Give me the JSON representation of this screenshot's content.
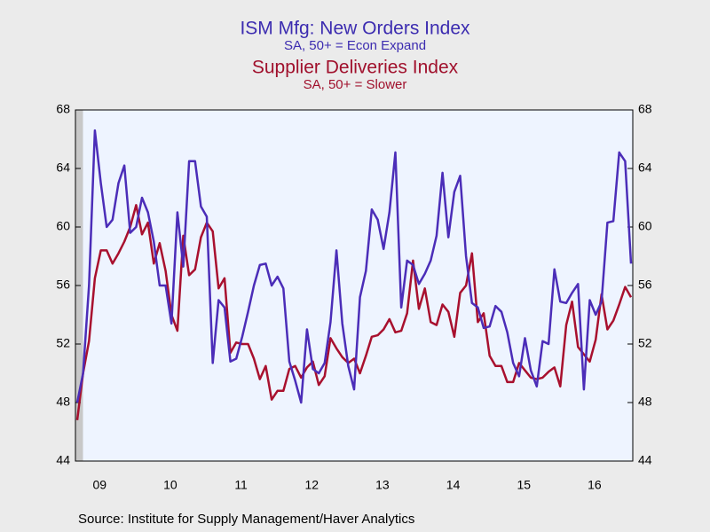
{
  "chart_data": {
    "type": "line",
    "titles": [
      "ISM Mfg: New Orders Index",
      "Supplier Deliveries Index"
    ],
    "subtitles": [
      "SA, 50+ = Econ Expand",
      "SA, 50+ = Slower"
    ],
    "source": "Source:  Institute for Supply Management/Haver Analytics",
    "categories": [
      null,
      null,
      "09",
      null,
      null,
      null,
      null,
      null,
      null,
      null,
      null,
      null,
      null,
      null,
      "10",
      null,
      null,
      null,
      null,
      null,
      null,
      null,
      null,
      null,
      null,
      null,
      "11",
      null,
      null,
      null,
      null,
      null,
      null,
      null,
      null,
      null,
      null,
      null,
      "12",
      null,
      null,
      null,
      null,
      null,
      null,
      null,
      null,
      null,
      null,
      null,
      "13",
      null,
      null,
      null,
      null,
      null,
      null,
      null,
      null,
      null,
      null,
      null,
      "14",
      null,
      null,
      null,
      null,
      null,
      null,
      null,
      null,
      null,
      null,
      null,
      "15",
      null,
      null,
      null,
      null,
      null,
      null,
      null,
      null,
      null,
      null,
      null,
      "16",
      null,
      null,
      null,
      null,
      null,
      null,
      null,
      null
    ],
    "series": [
      {
        "name": "ISM Mfg: New Orders Index",
        "color": "#4b2db8",
        "values": [
          48,
          50,
          56,
          66.6,
          63,
          60,
          60.5,
          63,
          64.2,
          59.6,
          60,
          62,
          61,
          59,
          56,
          56,
          53.4,
          61,
          57.3,
          64.5,
          64.5,
          61.4,
          60.7,
          50.7,
          55,
          54.5,
          50.8,
          51,
          52.5,
          54.2,
          56,
          57.4,
          57.5,
          56,
          56.6,
          55.8,
          50.8,
          49.5,
          48,
          53,
          50.3,
          50,
          50.7,
          53.5,
          58.4,
          53.4,
          50.5,
          48.9,
          55.2,
          57,
          61.2,
          60.5,
          58.5,
          61,
          65.1,
          54.5,
          57.7,
          57.4,
          56.1,
          56.8,
          57.7,
          59.4,
          63.7,
          59.3,
          62.4,
          63.5,
          58,
          54.8,
          54.5,
          53.1,
          53.2,
          54.6,
          54.2,
          52.8,
          50.7,
          49.8,
          52.4,
          50.2,
          49.1,
          52.2,
          52,
          57.1,
          54.9,
          54.8,
          55.5,
          56.1,
          48.9,
          55,
          54,
          54.9,
          60.3,
          60.4,
          65.1,
          64.5,
          57.5
        ]
      },
      {
        "name": "Supplier Deliveries Index",
        "color": "#a8102e",
        "values": [
          46.8,
          50,
          52.2,
          56.5,
          58.4,
          58.4,
          57.5,
          58.2,
          59,
          60,
          61.5,
          59.5,
          60.3,
          57.5,
          58.9,
          57,
          54,
          52.9,
          59.4,
          56.7,
          57.1,
          59.3,
          60.3,
          59.7,
          55.8,
          56.5,
          51.4,
          52.1,
          52,
          52,
          51,
          49.6,
          50.5,
          48.2,
          48.8,
          48.8,
          50.3,
          50.5,
          49.7,
          50.4,
          50.8,
          49.2,
          49.8,
          52.4,
          51.7,
          51.1,
          50.7,
          51,
          50,
          51.2,
          52.5,
          52.6,
          53,
          53.7,
          52.8,
          52.9,
          54.1,
          57.7,
          54.4,
          55.8,
          53.5,
          53.3,
          54.7,
          54.2,
          52.5,
          55.5,
          56,
          58.2,
          53.5,
          54.1,
          51.2,
          50.5,
          50.5,
          49.4,
          49.4,
          50.7,
          50.2,
          49.7,
          49.6,
          49.7,
          50.1,
          50.4,
          49.1,
          53.3,
          54.9,
          51.8,
          51.3,
          50.8,
          52.3,
          55.4,
          53,
          53.6,
          54.7,
          55.9,
          55.2
        ]
      }
    ],
    "ylim": [
      44,
      68
    ],
    "yticks": [
      44,
      48,
      52,
      56,
      60,
      64,
      68
    ],
    "y2lim": [
      44,
      68
    ],
    "y2ticks": [
      44,
      48,
      52,
      56,
      60,
      64,
      68
    ]
  }
}
